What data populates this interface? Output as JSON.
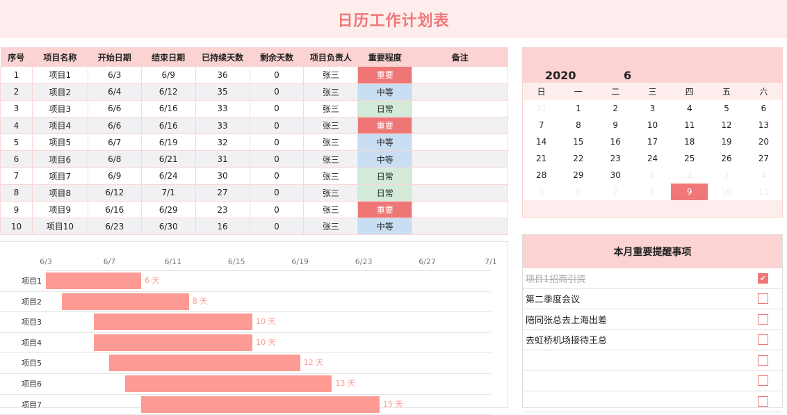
{
  "title": "日历工作计划表",
  "table": {
    "headers": [
      "序号",
      "项目名称",
      "开始日期",
      "结束日期",
      "已持续天数",
      "剩余天数",
      "项目负责人",
      "重要程度",
      "备注"
    ],
    "rows": [
      {
        "no": "1",
        "name": "项目1",
        "start": "6/3",
        "end": "6/9",
        "elapsed": "36",
        "remaining": "0",
        "owner": "张三",
        "level": "重要",
        "level_type": "high",
        "note": ""
      },
      {
        "no": "2",
        "name": "项目2",
        "start": "6/4",
        "end": "6/12",
        "elapsed": "35",
        "remaining": "0",
        "owner": "张三",
        "level": "中等",
        "level_type": "mid",
        "note": ""
      },
      {
        "no": "3",
        "name": "项目3",
        "start": "6/6",
        "end": "6/16",
        "elapsed": "33",
        "remaining": "0",
        "owner": "张三",
        "level": "日常",
        "level_type": "low",
        "note": ""
      },
      {
        "no": "4",
        "name": "项目4",
        "start": "6/6",
        "end": "6/16",
        "elapsed": "33",
        "remaining": "0",
        "owner": "张三",
        "level": "重要",
        "level_type": "high",
        "note": ""
      },
      {
        "no": "5",
        "name": "项目5",
        "start": "6/7",
        "end": "6/19",
        "elapsed": "32",
        "remaining": "0",
        "owner": "张三",
        "level": "中等",
        "level_type": "mid",
        "note": ""
      },
      {
        "no": "6",
        "name": "项目6",
        "start": "6/8",
        "end": "6/21",
        "elapsed": "31",
        "remaining": "0",
        "owner": "张三",
        "level": "中等",
        "level_type": "mid",
        "note": ""
      },
      {
        "no": "7",
        "name": "项目7",
        "start": "6/9",
        "end": "6/24",
        "elapsed": "30",
        "remaining": "0",
        "owner": "张三",
        "level": "日常",
        "level_type": "low",
        "note": ""
      },
      {
        "no": "8",
        "name": "项目8",
        "start": "6/12",
        "end": "7/1",
        "elapsed": "27",
        "remaining": "0",
        "owner": "张三",
        "level": "日常",
        "level_type": "low",
        "note": ""
      },
      {
        "no": "9",
        "name": "项目9",
        "start": "6/16",
        "end": "6/29",
        "elapsed": "23",
        "remaining": "0",
        "owner": "张三",
        "level": "重要",
        "level_type": "high",
        "note": ""
      },
      {
        "no": "10",
        "name": "项目10",
        "start": "6/23",
        "end": "6/30",
        "elapsed": "16",
        "remaining": "0",
        "owner": "张三",
        "level": "中等",
        "level_type": "mid",
        "note": ""
      }
    ]
  },
  "calendar": {
    "year": "2020",
    "month": "6",
    "weekdays": [
      "日",
      "一",
      "二",
      "三",
      "四",
      "五",
      "六"
    ],
    "days": [
      {
        "d": "31",
        "t": "dim"
      },
      {
        "d": "1",
        "t": ""
      },
      {
        "d": "2",
        "t": ""
      },
      {
        "d": "3",
        "t": ""
      },
      {
        "d": "4",
        "t": ""
      },
      {
        "d": "5",
        "t": ""
      },
      {
        "d": "6",
        "t": ""
      },
      {
        "d": "7",
        "t": ""
      },
      {
        "d": "8",
        "t": ""
      },
      {
        "d": "9",
        "t": ""
      },
      {
        "d": "10",
        "t": ""
      },
      {
        "d": "11",
        "t": ""
      },
      {
        "d": "12",
        "t": ""
      },
      {
        "d": "13",
        "t": ""
      },
      {
        "d": "14",
        "t": ""
      },
      {
        "d": "15",
        "t": ""
      },
      {
        "d": "16",
        "t": ""
      },
      {
        "d": "17",
        "t": ""
      },
      {
        "d": "18",
        "t": ""
      },
      {
        "d": "19",
        "t": ""
      },
      {
        "d": "20",
        "t": ""
      },
      {
        "d": "21",
        "t": ""
      },
      {
        "d": "22",
        "t": ""
      },
      {
        "d": "23",
        "t": ""
      },
      {
        "d": "24",
        "t": ""
      },
      {
        "d": "25",
        "t": ""
      },
      {
        "d": "26",
        "t": ""
      },
      {
        "d": "27",
        "t": ""
      },
      {
        "d": "28",
        "t": ""
      },
      {
        "d": "29",
        "t": ""
      },
      {
        "d": "30",
        "t": ""
      },
      {
        "d": "1",
        "t": "dim"
      },
      {
        "d": "2",
        "t": "dim"
      },
      {
        "d": "3",
        "t": "dim"
      },
      {
        "d": "4",
        "t": "dim"
      },
      {
        "d": "5",
        "t": "dim"
      },
      {
        "d": "6",
        "t": "dim"
      },
      {
        "d": "7",
        "t": "dim"
      },
      {
        "d": "8",
        "t": "dim"
      },
      {
        "d": "9",
        "t": "today"
      },
      {
        "d": "10",
        "t": "dim"
      },
      {
        "d": "11",
        "t": "dim"
      }
    ]
  },
  "reminders": {
    "title": "本月重要提醒事项",
    "items": [
      {
        "text": "项目1招商引资",
        "checked": true
      },
      {
        "text": "第二季度会议",
        "checked": false
      },
      {
        "text": "陪同张总去上海出差",
        "checked": false
      },
      {
        "text": "去虹桥机场接待王总",
        "checked": false
      },
      {
        "text": "",
        "checked": false
      },
      {
        "text": "",
        "checked": false
      },
      {
        "text": "",
        "checked": false
      }
    ]
  },
  "chart_data": {
    "type": "bar",
    "orientation": "horizontal-gantt",
    "x_ticks": [
      "6/3",
      "6/7",
      "6/11",
      "6/15",
      "6/19",
      "6/23",
      "6/27",
      "7/1"
    ],
    "x_range_days": [
      3,
      31
    ],
    "categories": [
      "项目1",
      "项目2",
      "项目3",
      "项目4",
      "项目5",
      "项目6",
      "项目7"
    ],
    "series": [
      {
        "name": "start_day",
        "values": [
          3,
          4,
          6,
          6,
          7,
          8,
          9
        ]
      },
      {
        "name": "duration",
        "values": [
          6,
          8,
          10,
          10,
          12,
          13,
          15
        ]
      }
    ],
    "labels": [
      "6 天",
      "8 天",
      "10 天",
      "10 天",
      "12 天",
      "13 天",
      "15 天"
    ],
    "bar_color": "#fe9a94"
  },
  "colors": {
    "accent": "#ef7777",
    "header_bg": "#fbd3d2",
    "light_bg": "#fdeeed",
    "mid_level": "#c9def2",
    "low_level": "#d4ead8"
  }
}
